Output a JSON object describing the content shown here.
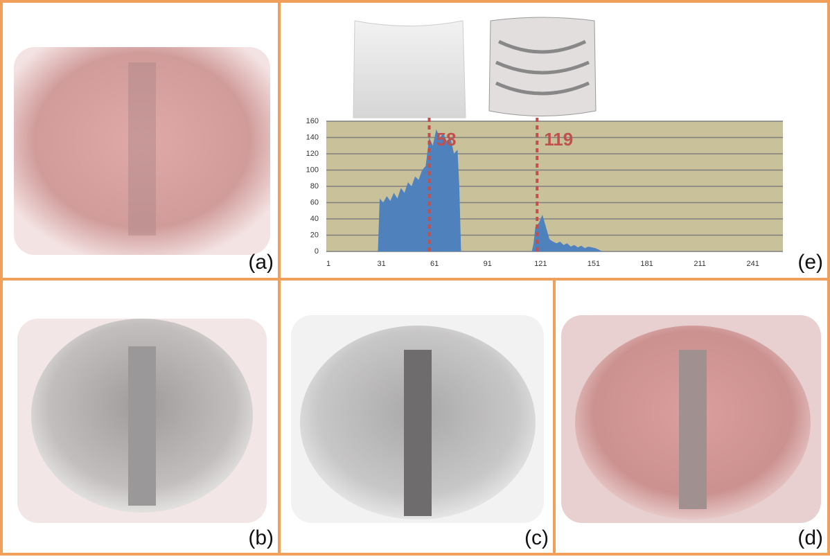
{
  "panel_labels": [
    "(a)",
    "(e)",
    "(b)",
    "(c)",
    "(d)"
  ],
  "chart_data": {
    "type": "area",
    "color": "#4f81bd",
    "background": "#c9c19a",
    "grid": true,
    "x": [
      1,
      29,
      30,
      32,
      34,
      36,
      38,
      40,
      42,
      44,
      46,
      48,
      50,
      52,
      54,
      56,
      58,
      60,
      62,
      64,
      66,
      68,
      70,
      72,
      74,
      75,
      76,
      116,
      117,
      118,
      120,
      122,
      124,
      126,
      128,
      130,
      132,
      134,
      136,
      138,
      140,
      142,
      144,
      146,
      148,
      150,
      152,
      154,
      156,
      256
    ],
    "values": [
      0,
      0,
      65,
      60,
      68,
      62,
      72,
      65,
      78,
      72,
      85,
      80,
      92,
      88,
      100,
      105,
      140,
      130,
      150,
      140,
      145,
      135,
      140,
      120,
      125,
      80,
      0,
      0,
      10,
      30,
      35,
      45,
      30,
      15,
      12,
      10,
      12,
      8,
      10,
      6,
      8,
      5,
      7,
      4,
      6,
      5,
      4,
      2,
      0,
      0
    ],
    "xlim": [
      1,
      256
    ],
    "xticks": [
      1,
      31,
      61,
      91,
      121,
      151,
      181,
      211,
      241
    ],
    "ylim": [
      0,
      160
    ],
    "yticks": [
      0,
      20,
      40,
      60,
      80,
      100,
      120,
      140,
      160
    ],
    "markers": [
      58,
      119
    ],
    "marker_color": "#c0504d"
  }
}
